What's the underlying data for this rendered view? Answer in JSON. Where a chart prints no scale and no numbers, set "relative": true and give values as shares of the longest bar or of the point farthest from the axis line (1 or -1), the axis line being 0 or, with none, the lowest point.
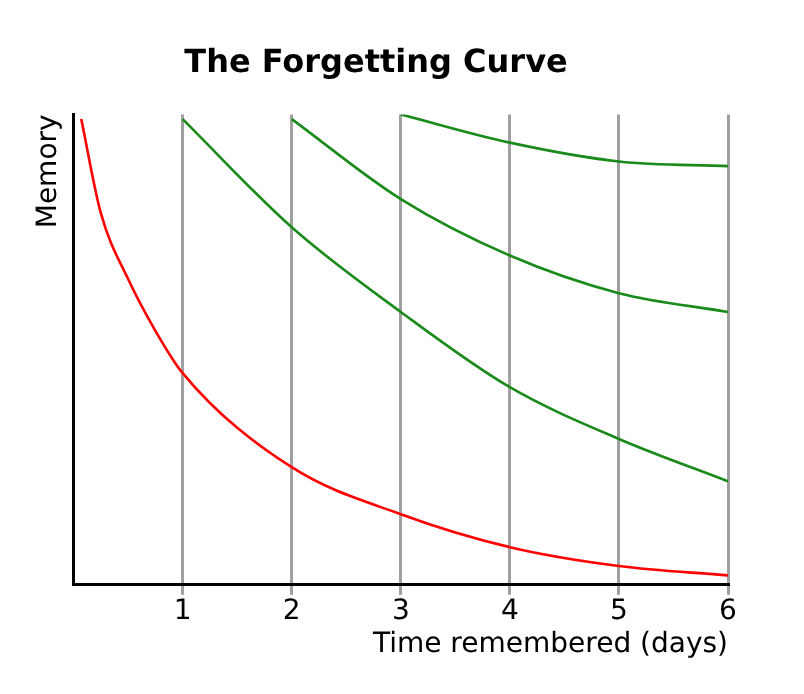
{
  "chart_data": {
    "type": "line",
    "title": "The Forgetting Curve",
    "xlabel": "Time remembered (days)",
    "ylabel": "Memory",
    "relative": true,
    "xlim": [
      0,
      6
    ],
    "xticks": [
      1,
      2,
      3,
      4,
      5,
      6
    ],
    "grid": "x",
    "legend": false,
    "marker": "none",
    "line_style": "solid",
    "series": [
      {
        "color": "#ff0000",
        "x": [
          0.07,
          0.25,
          0.5,
          0.75,
          1,
          2,
          3,
          4,
          5,
          6
        ],
        "values": [
          0.99,
          0.79,
          0.65,
          0.54,
          0.45,
          0.25,
          0.15,
          0.08,
          0.04,
          0.02
        ]
      },
      {
        "color": "#1a8a1a",
        "x": [
          1,
          2,
          3,
          4,
          5,
          6
        ],
        "values": [
          0.99,
          0.76,
          0.58,
          0.42,
          0.31,
          0.22
        ]
      },
      {
        "color": "#1a8a1a",
        "x": [
          2,
          3,
          4,
          5,
          6
        ],
        "values": [
          0.99,
          0.82,
          0.7,
          0.62,
          0.58
        ]
      },
      {
        "color": "#1a8a1a",
        "x": [
          3,
          4,
          5,
          6
        ],
        "values": [
          1,
          0.94,
          0.9,
          0.89
        ]
      }
    ]
  }
}
